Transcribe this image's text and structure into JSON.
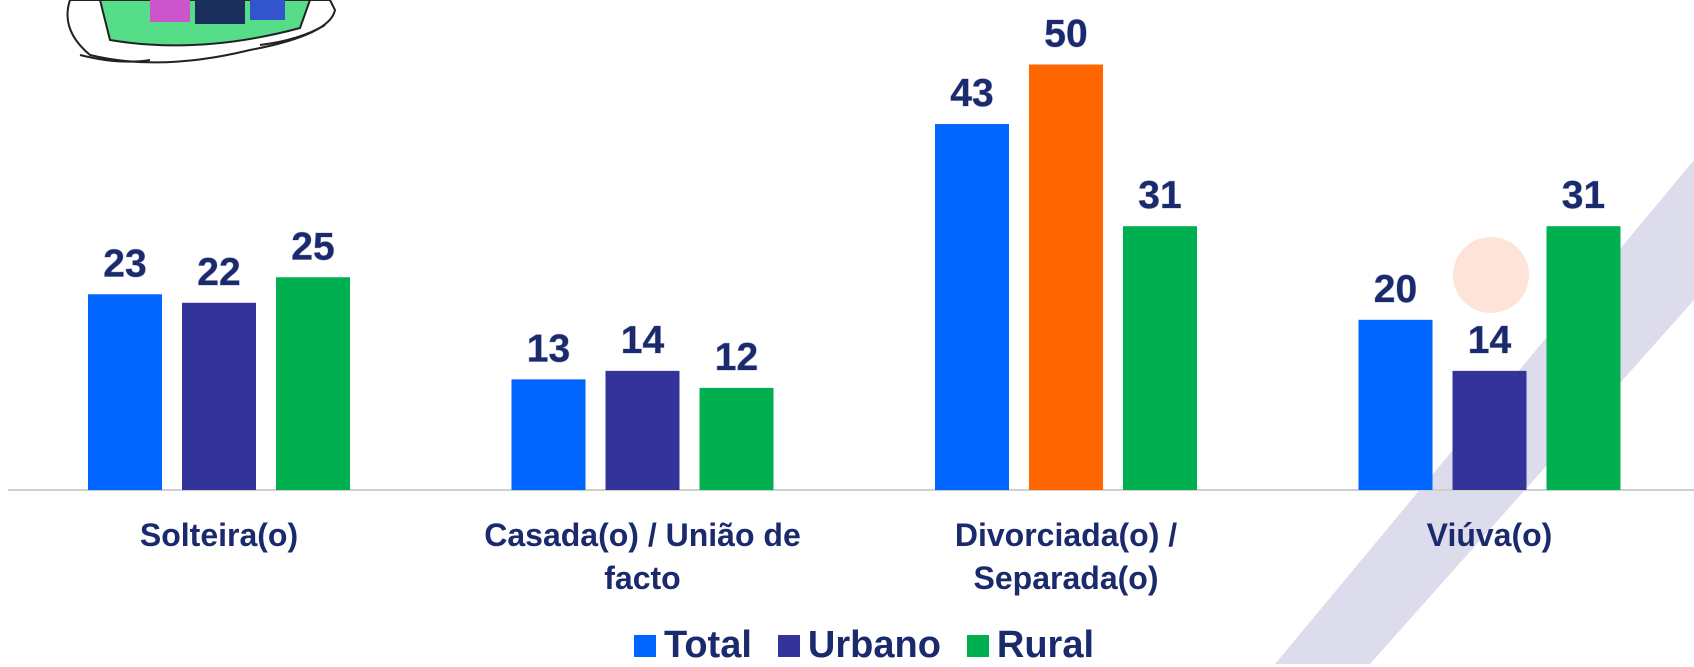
{
  "chart_data": {
    "type": "bar",
    "categories": [
      "Solteira(o)",
      "Casada(o) / União de facto",
      "Divorciada(o) / Separada(o)",
      "Viúva(o)"
    ],
    "series": [
      {
        "name": "Total",
        "color": "#0066ff",
        "values": [
          23,
          13,
          43,
          20
        ]
      },
      {
        "name": "Urbano",
        "color": "#333399",
        "values": [
          22,
          14,
          50,
          14
        ],
        "point_colors": [
          "#333399",
          "#333399",
          "#ff6600",
          "#333399"
        ]
      },
      {
        "name": "Rural",
        "color": "#00b050",
        "values": [
          25,
          12,
          31,
          31
        ]
      }
    ],
    "legend": "bottom"
  }
}
